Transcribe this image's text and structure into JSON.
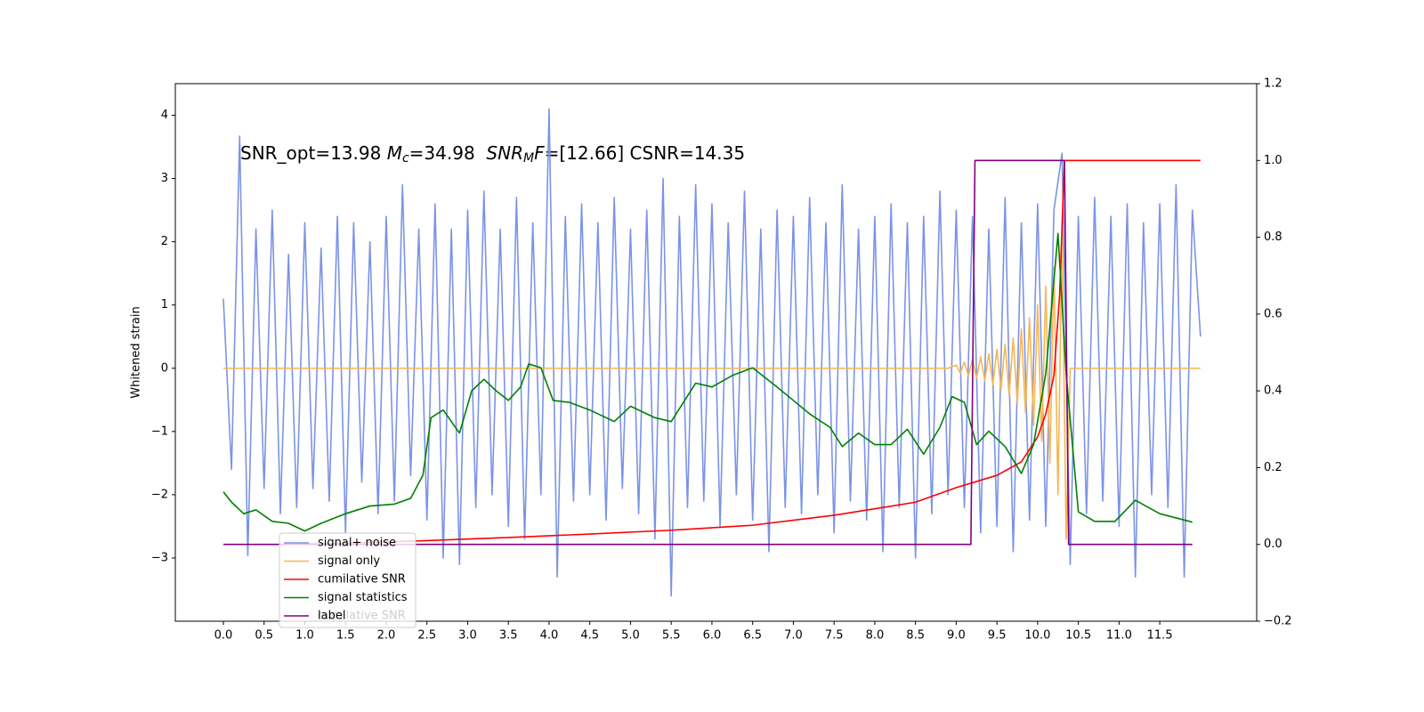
{
  "chart_data": {
    "type": "line",
    "annotation": [
      "SNR_opt=13.98 ",
      "M",
      "c",
      "=34.98  ",
      "SNR",
      "M",
      "F",
      "=[12.66] CSNR=14.35"
    ],
    "ylabel": "Whitened strain",
    "xlim": [
      -0.59,
      12.69
    ],
    "ylim": [
      -4.0,
      4.5
    ],
    "y2lim": [
      -0.2,
      1.2
    ],
    "xticks": [
      {
        "value": 0,
        "label": "0.0"
      },
      0.5,
      {
        "value": 1,
        "label": "1.0"
      },
      1.5,
      {
        "value": 2,
        "label": "2.0"
      },
      2.5,
      {
        "value": 3,
        "label": "3.0"
      },
      3.5,
      {
        "value": 4,
        "label": "4.0"
      },
      4.5,
      {
        "value": 5,
        "label": "5.0"
      },
      5.5,
      {
        "value": 6,
        "label": "6.0"
      },
      6.5,
      {
        "value": 7,
        "label": "7.0"
      },
      7.5,
      {
        "value": 8,
        "label": "8.0"
      },
      8.5,
      {
        "value": 9,
        "label": "9.0"
      },
      9.5,
      {
        "value": 10,
        "label": "10.0"
      },
      10.5,
      {
        "value": 11,
        "label": "11.0"
      },
      11.5
    ],
    "yticks": [
      {
        "value": -3,
        "label": "−3"
      },
      {
        "value": -2,
        "label": "−2"
      },
      {
        "value": -1,
        "label": "−1"
      },
      0,
      1,
      2,
      3,
      4
    ],
    "y2ticks": [
      {
        "value": -0.2,
        "label": "−0.2"
      },
      {
        "value": 0,
        "label": "0.0"
      },
      0.2,
      0.4,
      0.6,
      0.8,
      {
        "value": 1,
        "label": "1.0"
      },
      1.2
    ],
    "series": [
      {
        "name": "signal+ noise",
        "color": "#7b93e6",
        "x": [
          0,
          0.1,
          0.2,
          0.3,
          0.4,
          0.5,
          0.6,
          0.7,
          0.8,
          0.9,
          1,
          1.1,
          1.2,
          1.3,
          1.4,
          1.5,
          1.6,
          1.7,
          1.8,
          1.9,
          2,
          2.1,
          2.2,
          2.3,
          2.4,
          2.5,
          2.6,
          2.7,
          2.8,
          2.9,
          3,
          3.1,
          3.2,
          3.3,
          3.4,
          3.5,
          3.6,
          3.7,
          3.8,
          3.9,
          4,
          4.1,
          4.2,
          4.3,
          4.4,
          4.5,
          4.6,
          4.7,
          4.8,
          4.9,
          5,
          5.1,
          5.2,
          5.3,
          5.4,
          5.5,
          5.6,
          5.7,
          5.8,
          5.9,
          6,
          6.1,
          6.2,
          6.3,
          6.4,
          6.5,
          6.6,
          6.7,
          6.8,
          6.9,
          7,
          7.1,
          7.2,
          7.3,
          7.4,
          7.5,
          7.6,
          7.7,
          7.8,
          7.9,
          8,
          8.1,
          8.2,
          8.3,
          8.4,
          8.5,
          8.6,
          8.7,
          8.8,
          8.9,
          9,
          9.1,
          9.2,
          9.3,
          9.4,
          9.5,
          9.6,
          9.7,
          9.8,
          9.9,
          10,
          10.1,
          10.2,
          10.3,
          10.4,
          10.5,
          10.6,
          10.7,
          10.8,
          10.9,
          11,
          11.1,
          11.2,
          11.3,
          11.4,
          11.5,
          11.6,
          11.7,
          11.8,
          11.9,
          12
        ],
        "values": [
          1.1,
          -1.6,
          3.67,
          -2.96,
          2.2,
          -1.9,
          2.5,
          -2.3,
          1.8,
          -2.2,
          2.3,
          -1.9,
          1.9,
          -2.1,
          2.4,
          -2.6,
          2.3,
          -1.8,
          2.0,
          -2.3,
          2.4,
          -2.1,
          2.9,
          -1.7,
          2.2,
          -2.4,
          2.6,
          -3.0,
          2.2,
          -3.1,
          2.5,
          -2.2,
          2.8,
          -2.0,
          2.2,
          -2.5,
          2.7,
          -2.7,
          2.3,
          -2.0,
          4.1,
          -3.3,
          2.4,
          -2.1,
          2.6,
          -2.0,
          2.3,
          -2.4,
          2.7,
          -1.9,
          2.2,
          -2.3,
          2.5,
          -2.7,
          3.0,
          -3.6,
          2.4,
          -2.2,
          2.9,
          -2.1,
          2.6,
          -2.5,
          2.3,
          -2.0,
          2.8,
          -2.4,
          2.2,
          -2.9,
          2.5,
          -2.2,
          2.4,
          -2.3,
          2.7,
          -2.0,
          2.3,
          -2.6,
          2.9,
          -2.1,
          2.2,
          -2.4,
          2.4,
          -2.9,
          2.6,
          -2.2,
          2.3,
          -3.0,
          2.4,
          -2.3,
          2.8,
          -2.0,
          2.5,
          -2.2,
          2.4,
          -2.6,
          2.2,
          -2.5,
          2.7,
          -2.9,
          2.3,
          -2.4,
          2.6,
          -2.5,
          2.5,
          3.4,
          -3.1,
          2.4,
          -2.3,
          2.7,
          -2.1,
          2.4,
          -2.5,
          2.6,
          -3.3,
          2.3,
          -2.0,
          2.6,
          -2.2,
          2.9,
          -3.3,
          2.5,
          0.5
        ]
      },
      {
        "name": "signal only",
        "color": "#f7b653",
        "x": [
          0,
          8.9,
          9.0,
          9.05,
          9.1,
          9.15,
          9.2,
          9.25,
          9.3,
          9.35,
          9.4,
          9.45,
          9.5,
          9.55,
          9.6,
          9.65,
          9.7,
          9.75,
          9.8,
          9.85,
          9.9,
          9.95,
          10.0,
          10.05,
          10.1,
          10.15,
          10.2,
          10.25,
          10.3,
          10.35,
          10.4,
          12.0
        ],
        "values": [
          0,
          0,
          0.05,
          -0.08,
          0.1,
          -0.12,
          0.14,
          -0.16,
          0.18,
          -0.2,
          0.23,
          -0.26,
          0.3,
          -0.34,
          0.38,
          -0.43,
          0.48,
          -0.55,
          0.62,
          -0.7,
          0.8,
          -0.9,
          1.0,
          -1.15,
          1.3,
          -1.5,
          1.6,
          -2.0,
          2.2,
          -2.7,
          0,
          0
        ]
      },
      {
        "name": "cumilative SNR",
        "color": "#ff0000",
        "axis": "y2",
        "x": [
          0.7,
          1.5,
          2.5,
          3.5,
          4.5,
          5.5,
          6.5,
          7.5,
          8.5,
          9.0,
          9.5,
          9.8,
          10.0,
          10.1,
          10.2,
          10.27,
          10.32,
          10.33,
          12.0
        ],
        "values": [
          0,
          0.003,
          0.01,
          0.018,
          0.027,
          0.037,
          0.05,
          0.076,
          0.11,
          0.148,
          0.18,
          0.215,
          0.28,
          0.34,
          0.44,
          0.65,
          0.95,
          1.0,
          1.0
        ]
      },
      {
        "name": "signal statistics",
        "color": "#008000",
        "axis": "y2",
        "x": [
          0,
          0.1,
          0.25,
          0.4,
          0.6,
          0.8,
          1.0,
          1.2,
          1.5,
          1.8,
          2.1,
          2.3,
          2.45,
          2.55,
          2.7,
          2.9,
          3.05,
          3.2,
          3.35,
          3.5,
          3.65,
          3.75,
          3.9,
          4.05,
          4.25,
          4.5,
          4.8,
          5.0,
          5.3,
          5.5,
          5.8,
          6.0,
          6.25,
          6.5,
          6.8,
          7.0,
          7.2,
          7.45,
          7.6,
          7.8,
          8.0,
          8.2,
          8.4,
          8.6,
          8.8,
          8.95,
          9.1,
          9.25,
          9.4,
          9.6,
          9.8,
          9.95,
          10.1,
          10.25,
          10.35,
          10.5,
          10.7,
          10.95,
          11.2,
          11.5,
          11.9
        ],
        "values": [
          0.137,
          0.11,
          0.08,
          0.09,
          0.06,
          0.055,
          0.035,
          0.055,
          0.08,
          0.1,
          0.105,
          0.12,
          0.18,
          0.33,
          0.35,
          0.29,
          0.4,
          0.43,
          0.4,
          0.375,
          0.41,
          0.47,
          0.46,
          0.375,
          0.37,
          0.35,
          0.32,
          0.36,
          0.33,
          0.32,
          0.42,
          0.41,
          0.44,
          0.46,
          0.41,
          0.375,
          0.34,
          0.305,
          0.255,
          0.29,
          0.26,
          0.26,
          0.3,
          0.235,
          0.305,
          0.385,
          0.37,
          0.26,
          0.295,
          0.255,
          0.185,
          0.26,
          0.445,
          0.81,
          0.445,
          0.085,
          0.06,
          0.06,
          0.115,
          0.08,
          0.058
        ]
      },
      {
        "name": "label",
        "color": "#800080",
        "axis": "y2",
        "x": [
          0,
          9.18,
          9.23,
          10.33,
          10.38,
          11.9
        ],
        "values": [
          0,
          0,
          1,
          1,
          0,
          0
        ]
      }
    ],
    "legend": "lower left"
  }
}
